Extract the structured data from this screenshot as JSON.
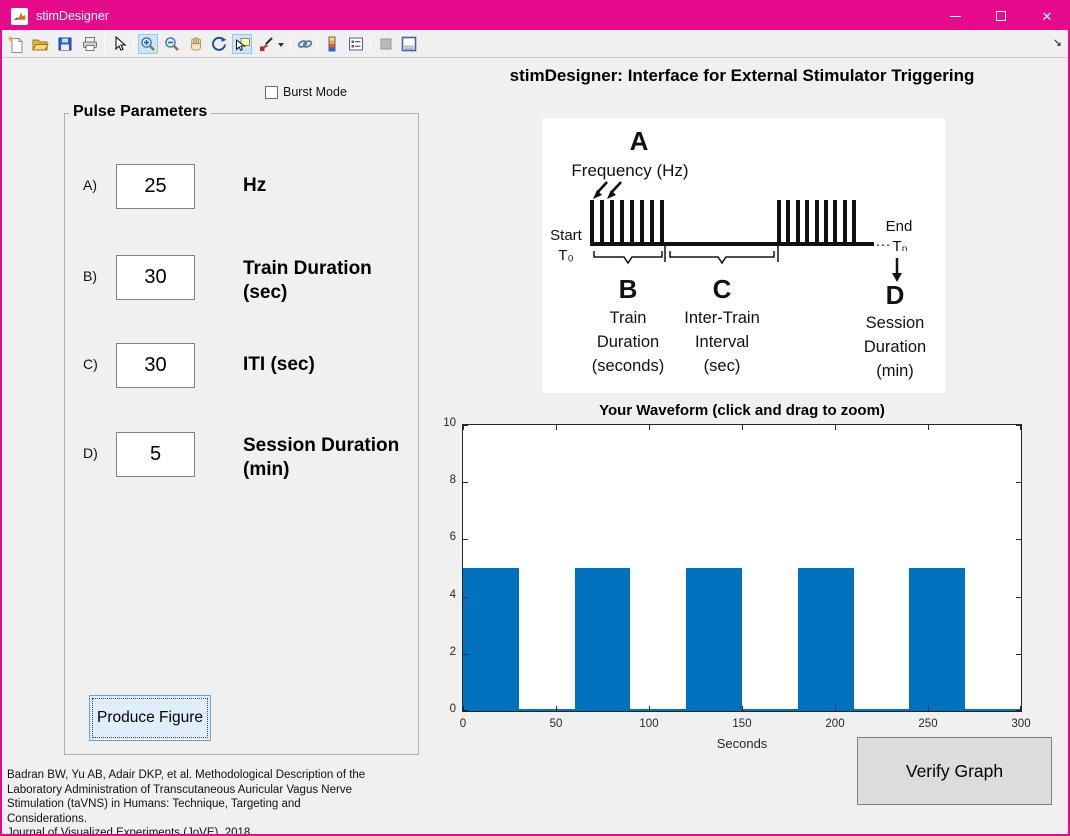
{
  "window": {
    "title": "stimDesigner",
    "controls": [
      "minimize",
      "maximize",
      "close"
    ]
  },
  "colors": {
    "accent": "#e60a8d",
    "matlab_blue": "#0072bd",
    "background": "#f0f0f0"
  },
  "toolbar": {
    "icons": [
      "new-file",
      "open-folder",
      "save",
      "print",
      "edit-pointer",
      "zoom-in",
      "zoom-out",
      "pan-hand",
      "rotate-3d",
      "data-cursor",
      "brush",
      "link-plot",
      "insert-colorbar",
      "insert-legend",
      "hide-plot-tools",
      "show-plot-tools",
      "dock-figure"
    ],
    "selected_icons": [
      "zoom-in",
      "data-cursor"
    ]
  },
  "burst_mode": {
    "label": "Burst Mode",
    "checked": false
  },
  "header": {
    "title": "stimDesigner: Interface for External Stimulator Triggering"
  },
  "pulse_parameters": {
    "legend": "Pulse Parameters",
    "fields": [
      {
        "id": "A",
        "label": "A)",
        "value": "25",
        "unit": "Hz"
      },
      {
        "id": "B",
        "label": "B)",
        "value": "30",
        "unit": "Train Duration (sec)"
      },
      {
        "id": "C",
        "label": "C)",
        "value": "30",
        "unit": "ITI (sec)"
      },
      {
        "id": "D",
        "label": "D)",
        "value": "5",
        "unit": "Session Duration (min)"
      }
    ],
    "produce_button_label": "Produce Figure"
  },
  "citation": {
    "lines": [
      "Badran BW, Yu AB, Adair DKP, et al. Methodological Description of the",
      "Laboratory Administration of Transcutaneous Auricular Vagus Nerve",
      "Stimulation (taVNS) in Humans: Technique, Targeting and Considerations.",
      "Journal of Visualized Experiments (JoVE). 2018."
    ]
  },
  "diagram": {
    "a_letter": "A",
    "a_label": "Frequency (Hz)",
    "start_label": "Start",
    "start_sub": "T₀",
    "end_label": "End",
    "end_dots": "···",
    "end_sub": "Tₙ",
    "b_letter": "B",
    "b_lines": [
      "Train",
      "Duration",
      "(seconds)"
    ],
    "c_letter": "C",
    "c_lines": [
      "Inter-Train",
      "Interval",
      "(sec)"
    ],
    "d_letter": "D",
    "d_lines": [
      "Session",
      "Duration",
      "(min)"
    ]
  },
  "chart_data": {
    "type": "bar",
    "title": "Your Waveform (click and drag to zoom)",
    "xlabel": "Seconds",
    "ylabel": "",
    "xlim": [
      0,
      300
    ],
    "ylim": [
      0,
      10
    ],
    "xticks": [
      0,
      50,
      100,
      150,
      200,
      250,
      300
    ],
    "yticks": [
      0,
      2,
      4,
      6,
      8,
      10
    ],
    "grid": false,
    "bar_color": "#0072bd",
    "amplitude": 5,
    "train_duration_sec": 30,
    "inter_train_interval_sec": 30,
    "bars": [
      {
        "x_start": 0,
        "x_end": 30,
        "value": 5
      },
      {
        "x_start": 60,
        "x_end": 90,
        "value": 5
      },
      {
        "x_start": 120,
        "x_end": 150,
        "value": 5
      },
      {
        "x_start": 180,
        "x_end": 210,
        "value": 5
      },
      {
        "x_start": 240,
        "x_end": 270,
        "value": 5
      }
    ],
    "baseline_value": 0
  },
  "verify_button_label": "Verify Graph"
}
